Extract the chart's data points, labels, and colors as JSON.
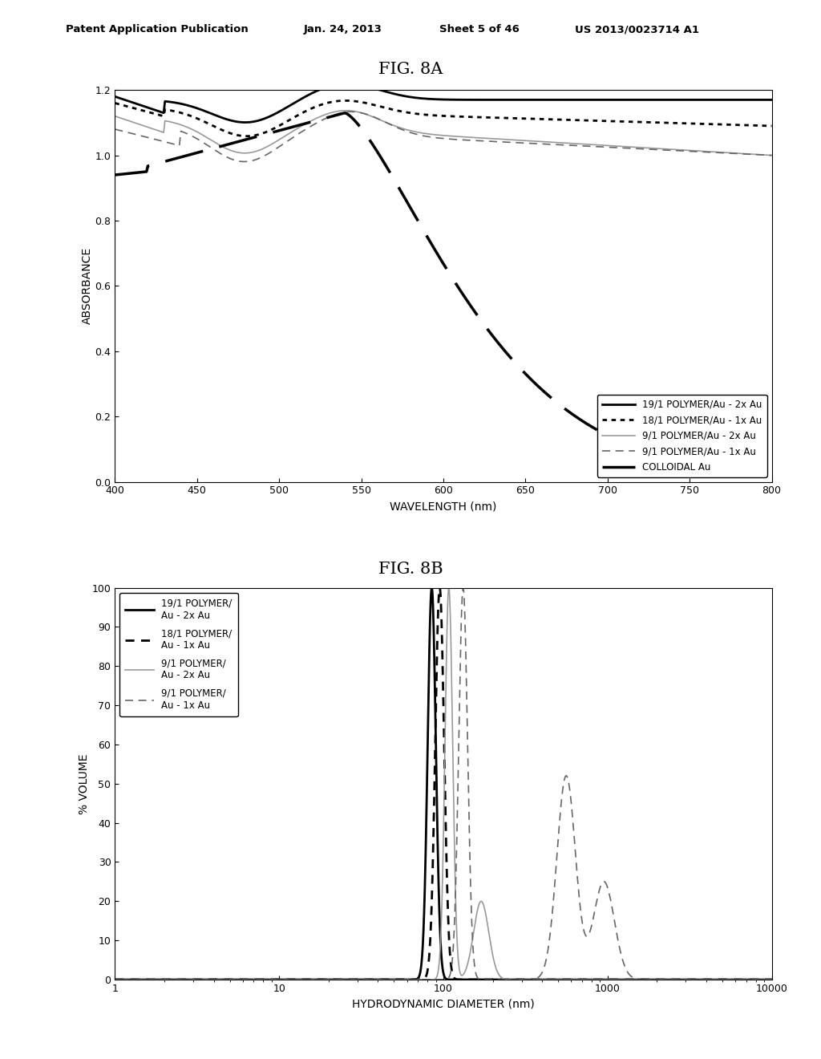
{
  "fig8a": {
    "title": "FIG. 8A",
    "xlabel": "WAVELENGTH (nm)",
    "ylabel": "ABSORBANCE",
    "xlim": [
      400,
      800
    ],
    "ylim": [
      0,
      1.2
    ],
    "yticks": [
      0,
      0.2,
      0.4,
      0.6,
      0.8,
      1.0,
      1.2
    ],
    "xticks": [
      400,
      450,
      500,
      550,
      600,
      650,
      700,
      750,
      800
    ],
    "legend_labels": [
      "19/1 POLYMER/Au - 2x Au",
      "18/1 POLYMER/Au - 1x Au",
      "9/1 POLYMER/Au - 2x Au",
      "9/1 POLYMER/Au - 1x Au",
      "COLLOIDAL Au"
    ]
  },
  "fig8b": {
    "title": "FIG. 8B",
    "xlabel": "HYDRODYNAMIC DIAMETER (nm)",
    "ylabel": "% VOLUME",
    "ylim": [
      0,
      100
    ],
    "yticks": [
      0,
      10,
      20,
      30,
      40,
      50,
      60,
      70,
      80,
      90,
      100
    ],
    "legend_labels": [
      "19/1 POLYMER/\nAu - 2x Au",
      "18/1 POLYMER/\nAu - 1x Au",
      "9/1 POLYMER/\nAu - 2x Au",
      "9/1 POLYMER/\nAu - 1x Au"
    ]
  },
  "header_text": "Patent Application Publication",
  "header_date": "Jan. 24, 2013",
  "header_sheet": "Sheet 5 of 46",
  "header_patent": "US 2013/0023714 A1",
  "background_color": "#ffffff"
}
